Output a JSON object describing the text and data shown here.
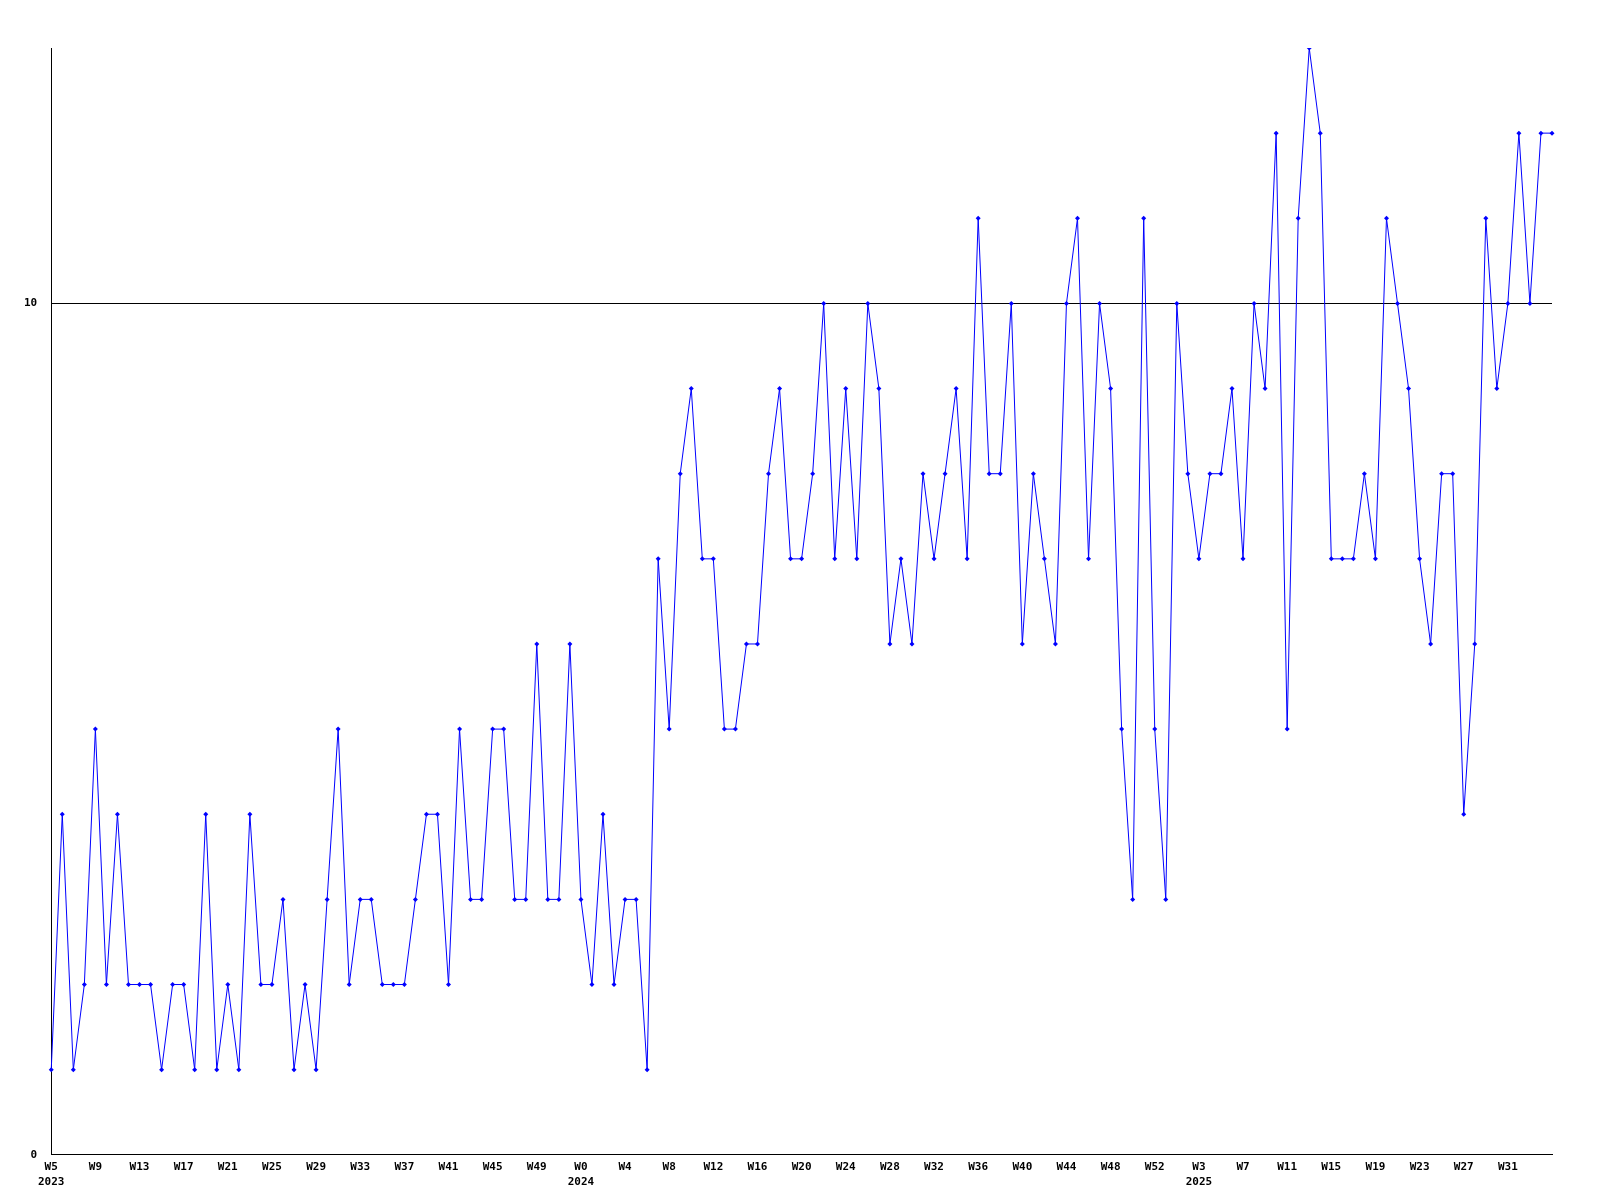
{
  "chart_data": {
    "type": "line",
    "categories": [
      "W5",
      null,
      null,
      null,
      "W9",
      null,
      null,
      null,
      "W13",
      null,
      null,
      null,
      "W17",
      null,
      null,
      null,
      "W21",
      null,
      null,
      null,
      "W25",
      null,
      null,
      null,
      "W29",
      null,
      null,
      null,
      "W33",
      null,
      null,
      null,
      "W37",
      null,
      null,
      null,
      "W41",
      null,
      null,
      null,
      "W45",
      null,
      null,
      null,
      "W49",
      null,
      null,
      null,
      "W0",
      null,
      null,
      null,
      "W4",
      null,
      null,
      null,
      "W8",
      null,
      null,
      null,
      "W12",
      null,
      null,
      null,
      "W16",
      null,
      null,
      null,
      "W20",
      null,
      null,
      null,
      "W24",
      null,
      null,
      null,
      "W28",
      null,
      null,
      null,
      "W32",
      null,
      null,
      null,
      "W36",
      null,
      null,
      null,
      "W40",
      null,
      null,
      null,
      "W44",
      null,
      null,
      null,
      "W48",
      null,
      null,
      null,
      "W52",
      null,
      null,
      null,
      "W3",
      null,
      null,
      null,
      "W7",
      null,
      null,
      null,
      "W11",
      null,
      null,
      null,
      "W15",
      null,
      null,
      null,
      "W19",
      null,
      null,
      null,
      "W23",
      null,
      null,
      null,
      "W27",
      null,
      null,
      null,
      "W31",
      null,
      null,
      null,
      null
    ],
    "series": [
      {
        "color": "#0000ff",
        "values": [
          1,
          4,
          1,
          2,
          5,
          2,
          4,
          2,
          2,
          2,
          1,
          2,
          2,
          1,
          4,
          1,
          2,
          1,
          4,
          2,
          2,
          3,
          1,
          2,
          1,
          3,
          5,
          2,
          3,
          3,
          2,
          2,
          2,
          3,
          4,
          4,
          2,
          5,
          3,
          3,
          5,
          5,
          3,
          3,
          6,
          3,
          3,
          6,
          3,
          2,
          4,
          2,
          3,
          3,
          1,
          7,
          5,
          8,
          9,
          7,
          7,
          5,
          5,
          6,
          6,
          8,
          9,
          7,
          7,
          8,
          10,
          7,
          9,
          7,
          10,
          9,
          6,
          7,
          6,
          8,
          7,
          8,
          9,
          7,
          11,
          8,
          8,
          10,
          6,
          8,
          7,
          6,
          10,
          11,
          7,
          10,
          9,
          5,
          3,
          11,
          5,
          3,
          10,
          8,
          7,
          8,
          8,
          9,
          7,
          10,
          9,
          12,
          5,
          11,
          13,
          12,
          7,
          7,
          7,
          8,
          7,
          11,
          10,
          9,
          7,
          6,
          8,
          8,
          4,
          6,
          11,
          9,
          10,
          12,
          10,
          12,
          12
        ]
      }
    ],
    "ylim": [
      0,
      13
    ],
    "yticks": [
      0,
      10
    ],
    "grid": "y",
    "marker": "diamond",
    "line_style": "solid",
    "annotations": [
      "2023",
      "2024",
      "2025"
    ]
  }
}
